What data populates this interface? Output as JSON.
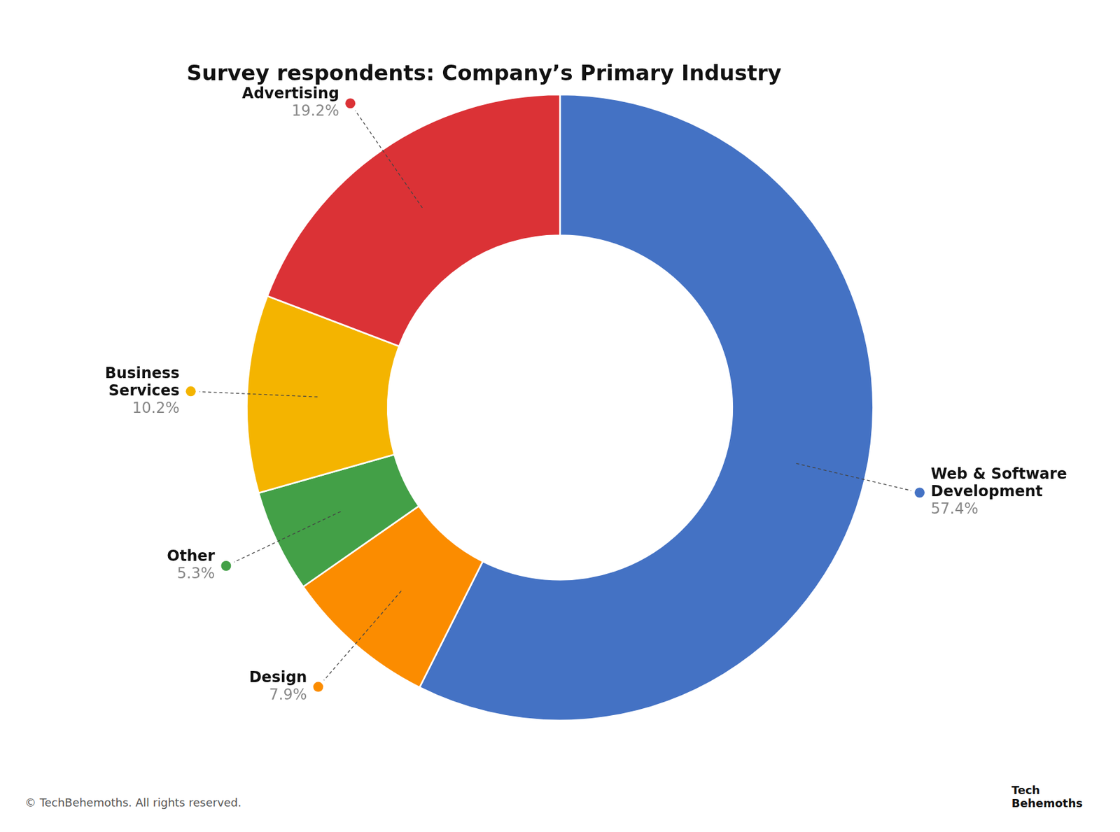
{
  "chart_data": {
    "type": "doughnut",
    "title": "Survey respondents: Company’s Primary Industry",
    "categories": [
      "Web & Software\nDevelopment",
      "Design",
      "Other",
      "Business\nServices",
      "Advertising"
    ],
    "values": [
      57.4,
      7.9,
      5.3,
      10.2,
      19.2
    ],
    "value_labels": [
      "57.4%",
      "7.9%",
      "5.3%",
      "10.2%",
      "19.2%"
    ],
    "colors": [
      "#4472C4",
      "#FB8C00",
      "#43A047",
      "#F4B400",
      "#DB3236"
    ],
    "data_labels": true,
    "legend": false,
    "annotations": [
      "© TechBehemoths. All rights reserved.",
      "Tech\nBehemoths"
    ]
  }
}
